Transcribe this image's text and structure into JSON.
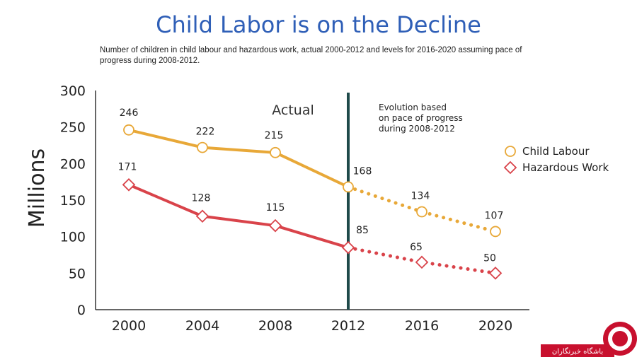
{
  "page": {
    "title": "Child Labor is on the Decline",
    "subtitle": "Number of children in child labour and hazardous work, actual 2000-2012 and levels for 2016-2020 assuming pace of progress during 2008-2012.",
    "annotation_actual": "Actual",
    "annotation_projection": [
      "Evolution based",
      "on pace of progress",
      "during 2008-2012"
    ],
    "watermark_text": "باشگاه خبرنگاران"
  },
  "chart_data": {
    "type": "line",
    "ylabel": "Millions",
    "xlabel": "",
    "x": [
      2000,
      2004,
      2008,
      2012,
      2016,
      2020
    ],
    "ylim": [
      0,
      300
    ],
    "yticks": [
      0,
      50,
      100,
      150,
      200,
      250,
      300
    ],
    "actual_until": 2012,
    "legend_position": "right",
    "grid": false,
    "series": [
      {
        "name": "Child Labour",
        "values": [
          246,
          222,
          215,
          168,
          134,
          107
        ],
        "color": "#e8a838",
        "marker": "circle"
      },
      {
        "name": "Hazardous Work",
        "values": [
          171,
          128,
          115,
          85,
          65,
          50
        ],
        "color": "#d9434a",
        "marker": "diamond"
      }
    ],
    "divider_color": "#1f4a4a"
  }
}
